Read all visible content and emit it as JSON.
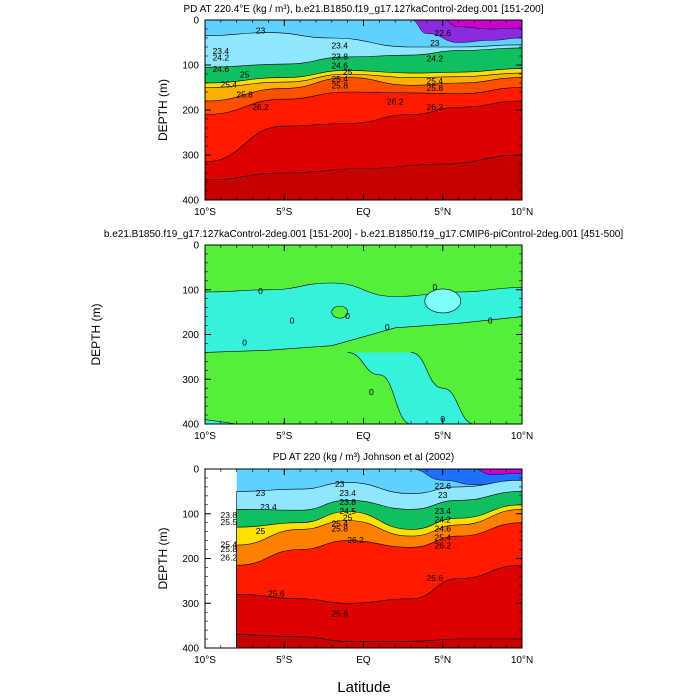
{
  "figure": {
    "xlabel": "Latitude",
    "xticks": [
      "10°S",
      "5°S",
      "EQ",
      "5°N",
      "10°N"
    ],
    "yticks": [
      "0",
      "100",
      "200",
      "300",
      "400"
    ]
  },
  "colors": {
    "density_scale": [
      "#cc00cc",
      "#ee44ee",
      "#8a2be2",
      "#2020d0",
      "#1f6fff",
      "#3aa0f0",
      "#5fd0ff",
      "#8fe6ff",
      "#aaffee",
      "#50e0a0",
      "#10c060",
      "#b8f000",
      "#ffe000",
      "#ffb000",
      "#ff8000",
      "#ff5000",
      "#ff1a00",
      "#dd0000",
      "#c40000"
    ],
    "difference_positive": "#55ee3a",
    "difference_negative": "#36f2dc",
    "contour_line": "#000000"
  },
  "chart_data": [
    {
      "type": "contour",
      "title": "PD AT 220.4°E (kg / m³), b.e21.B1850.f19_g17.127kaControl-2deg.001 [151-200]",
      "xlabel": "",
      "ylabel": "DEPTH (m)",
      "xlim": [
        -10,
        10
      ],
      "ylim": [
        400,
        0
      ],
      "x_range_data": [
        -10,
        10
      ],
      "depth_levels_m": [
        0,
        20,
        40,
        60,
        80,
        100,
        120,
        140,
        160,
        180,
        200,
        250,
        300,
        350,
        400
      ],
      "isopycnals": [
        {
          "level": 23.0,
          "depth_profile": [
            [
              -10,
              35
            ],
            [
              -6,
              28
            ],
            [
              -2,
              40
            ],
            [
              3,
              60
            ],
            [
              6,
              60
            ],
            [
              10,
              55
            ]
          ]
        },
        {
          "level": 23.4,
          "depth_profile": [
            [
              -10,
              105
            ],
            [
              -5,
              98
            ],
            [
              -1,
              82
            ],
            [
              3,
              78
            ],
            [
              6,
              68
            ],
            [
              10,
              62
            ]
          ]
        },
        {
          "level": 24.6,
          "depth_profile": [
            [
              -10,
              140
            ],
            [
              -5,
              128
            ],
            [
              -1,
              112
            ],
            [
              3,
              118
            ],
            [
              6,
              116
            ],
            [
              10,
              108
            ]
          ]
        },
        {
          "level": 25.0,
          "depth_profile": [
            [
              -10,
              150
            ],
            [
              -5,
              138
            ],
            [
              -1,
              120
            ],
            [
              3,
              128
            ],
            [
              6,
              126
            ],
            [
              10,
              118
            ]
          ]
        },
        {
          "level": 25.4,
          "depth_profile": [
            [
              -10,
              180
            ],
            [
              -5,
              152
            ],
            [
              -1,
              128
            ],
            [
              3,
              145
            ],
            [
              6,
              140
            ],
            [
              10,
              128
            ]
          ]
        },
        {
          "level": 25.8,
          "depth_profile": [
            [
              -10,
              210
            ],
            [
              -5,
              176
            ],
            [
              -1,
              160
            ],
            [
              3,
              162
            ],
            [
              6,
              164
            ],
            [
              10,
              150
            ]
          ]
        },
        {
          "level": 26.2,
          "depth_profile": [
            [
              -10,
              315
            ],
            [
              -5,
              236
            ],
            [
              -1,
              230
            ],
            [
              3,
              210
            ],
            [
              6,
              194
            ],
            [
              10,
              180
            ]
          ]
        }
      ],
      "contour_labels": [
        "23",
        "23.4",
        "23.8",
        "24.2",
        "24.6",
        "25",
        "25.4",
        "25.8",
        "26.2"
      ],
      "surface_min_region": "magenta (~21.0) at 4°N–10°N, 0–40 m"
    },
    {
      "type": "contour",
      "title": "b.e21.B1850.f19_g17.127kaControl-2deg.001 [151-200] - b.e21.B1850.f19_g17.CMIP6-piControl-2deg.001 [451-500]",
      "xlabel": "",
      "ylabel": "DEPTH (m)",
      "xlim": [
        -10,
        10
      ],
      "ylim": [
        400,
        0
      ],
      "x_range_data": [
        -10,
        10
      ],
      "levels": [
        -0.2,
        0,
        0.2
      ],
      "contour_labels": [
        "0",
        "0",
        "0",
        "0",
        "0",
        "0",
        "0",
        "0",
        "0"
      ],
      "note": "positive (green) above ~80 m and below ~200 m; negative (cyan) band 80–220 m deepening to 400 m near 0°–7°N"
    },
    {
      "type": "contour",
      "title": "PD AT 220 (kg / m³) Johnson et al (2002)",
      "xlabel": "Latitude",
      "ylabel": "DEPTH (m)",
      "xlim": [
        -10,
        10
      ],
      "ylim": [
        400,
        0
      ],
      "x_range_data": [
        -8,
        10
      ],
      "isopycnals": [
        {
          "level": 23.0,
          "depth_profile": [
            [
              -8,
              50
            ],
            [
              -4,
              45
            ],
            [
              -1,
              30
            ],
            [
              3,
              55
            ],
            [
              6,
              40
            ],
            [
              10,
              25
            ]
          ]
        },
        {
          "level": 23.4,
          "depth_profile": [
            [
              -8,
              90
            ],
            [
              -4,
              92
            ],
            [
              -1,
              70
            ],
            [
              3,
              90
            ],
            [
              6,
              70
            ],
            [
              10,
              50
            ]
          ]
        },
        {
          "level": 25.0,
          "depth_profile": [
            [
              -8,
              130
            ],
            [
              -4,
              120
            ],
            [
              -1,
              95
            ],
            [
              3,
              135
            ],
            [
              6,
              110
            ],
            [
              10,
              80
            ]
          ]
        },
        {
          "level": 25.4,
          "depth_profile": [
            [
              -8,
              170
            ],
            [
              -4,
              135
            ],
            [
              -1,
              115
            ],
            [
              3,
              150
            ],
            [
              6,
              125
            ],
            [
              10,
              90
            ]
          ]
        },
        {
          "level": 26.2,
          "depth_profile": [
            [
              -8,
              215
            ],
            [
              -4,
              180
            ],
            [
              -1,
              160
            ],
            [
              3,
              175
            ],
            [
              6,
              150
            ],
            [
              10,
              120
            ]
          ]
        },
        {
          "level": 26.6,
          "depth_profile": [
            [
              -8,
              280
            ],
            [
              -4,
              290
            ],
            [
              -1,
              300
            ],
            [
              3,
              290
            ],
            [
              6,
              245
            ],
            [
              10,
              215
            ]
          ]
        },
        {
          "level": 26.8,
          "depth_profile": [
            [
              -8,
              370
            ],
            [
              -4,
              375
            ],
            [
              -1,
              385
            ],
            [
              3,
              385
            ],
            [
              6,
              380
            ],
            [
              10,
              380
            ]
          ]
        }
      ],
      "contour_labels": [
        "22.6",
        "23",
        "23.4",
        "23.8",
        "24.2",
        "24.6",
        "25",
        "25.4",
        "25.8",
        "26.2",
        "25.6",
        "25.6"
      ]
    }
  ]
}
